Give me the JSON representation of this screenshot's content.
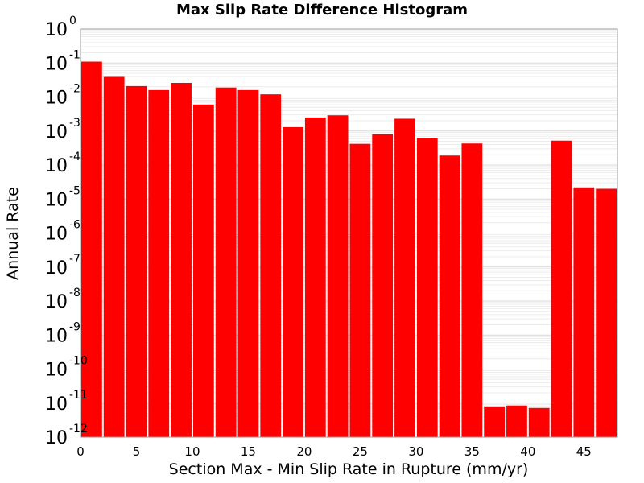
{
  "chart_data": {
    "type": "bar",
    "title": "Max Slip Rate Difference Histogram",
    "xlabel": "Section Max - Min Slip Rate in Rupture (mm/yr)",
    "ylabel": "Annual Rate",
    "xlim": [
      0,
      48
    ],
    "ylim": [
      1e-12,
      1
    ],
    "yscale": "log",
    "x_ticks": [
      0,
      5,
      10,
      15,
      20,
      25,
      30,
      35,
      40,
      45
    ],
    "y_tick_exponents": [
      0,
      -1,
      -2,
      -3,
      -4,
      -5,
      -6,
      -7,
      -8,
      -9,
      -10,
      -11,
      -12
    ],
    "y_tick_base": "10",
    "bin_width": 2,
    "x": [
      1,
      3,
      5,
      7,
      9,
      11,
      13,
      15,
      17,
      19,
      21,
      23,
      25,
      27,
      29,
      31,
      33,
      35,
      37,
      39,
      41,
      43,
      45,
      47
    ],
    "values": [
      0.11,
      0.039,
      0.021,
      0.016,
      0.026,
      0.006,
      0.019,
      0.016,
      0.012,
      0.0013,
      0.0025,
      0.0029,
      0.00042,
      0.0008,
      0.0023,
      0.00063,
      0.00019,
      0.00043,
      8e-12,
      8.5e-12,
      7.2e-12,
      0.00052,
      2.2e-05,
      2e-05
    ],
    "bar_color": "#ff0000",
    "grid": true
  }
}
